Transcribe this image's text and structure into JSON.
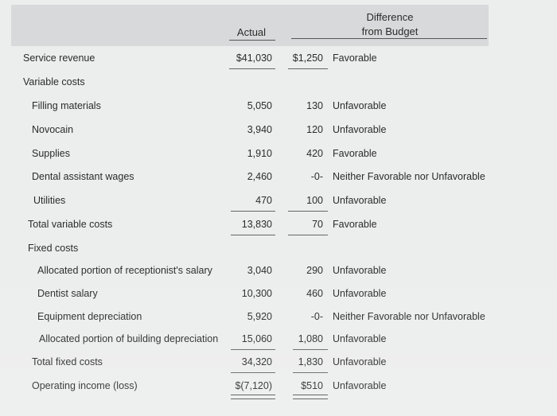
{
  "header": {
    "actual": "Actual",
    "difference_line1": "Difference",
    "difference_line2": "from Budget"
  },
  "rows": [
    {
      "label": "Service revenue",
      "actual": "$41,030",
      "difference": "$1,250",
      "status": "Favorable"
    },
    {
      "label": "Variable costs",
      "actual": "",
      "difference": "",
      "status": ""
    },
    {
      "label": "Filling materials",
      "actual": "5,050",
      "difference": "130",
      "status": "Unfavorable"
    },
    {
      "label": "Novocain",
      "actual": "3,940",
      "difference": "120",
      "status": "Unfavorable"
    },
    {
      "label": "Supplies",
      "actual": "1,910",
      "difference": "420",
      "status": "Favorable"
    },
    {
      "label": "Dental assistant wages",
      "actual": "2,460",
      "difference": "-0-",
      "status": "Neither Favorable nor Unfavorable"
    },
    {
      "label": "Utilities",
      "actual": "470",
      "difference": "100",
      "status": "Unfavorable"
    },
    {
      "label": "Total variable costs",
      "actual": "13,830",
      "difference": "70",
      "status": "Favorable"
    },
    {
      "label": "Fixed costs",
      "actual": "",
      "difference": "",
      "status": ""
    },
    {
      "label": "Allocated portion of receptionist's salary",
      "actual": "3,040",
      "difference": "290",
      "status": "Unfavorable"
    },
    {
      "label": "Dentist salary",
      "actual": "10,300",
      "difference": "460",
      "status": "Unfavorable"
    },
    {
      "label": "Equipment depreciation",
      "actual": "5,920",
      "difference": "-0-",
      "status": "Neither Favorable nor Unfavorable"
    },
    {
      "label": "Allocated portion of building depreciation",
      "actual": "15,060",
      "difference": "1,080",
      "status": "Unfavorable"
    },
    {
      "label": "Total fixed costs",
      "actual": "34,320",
      "difference": "1,830",
      "status": "Unfavorable"
    },
    {
      "label": "Operating income (loss)",
      "actual": "$(7,120)",
      "difference": "$510",
      "status": "Unfavorable"
    }
  ]
}
